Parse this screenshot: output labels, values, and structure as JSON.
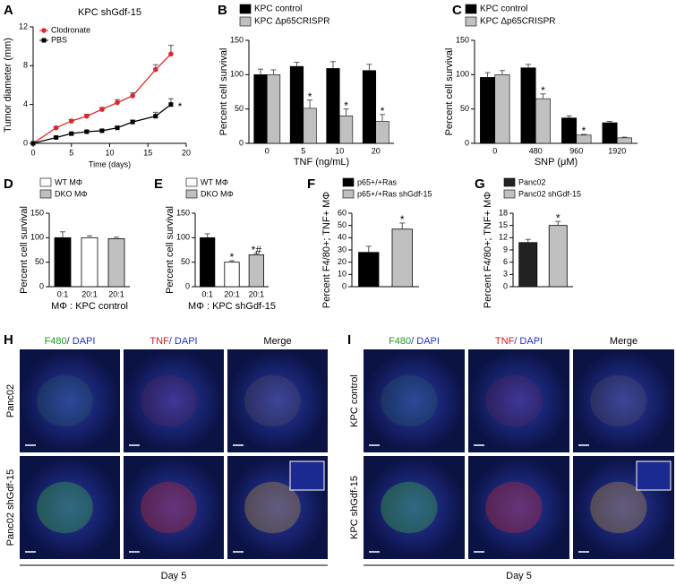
{
  "chart_data": [
    {
      "label": "A",
      "type": "line",
      "title": "KPC shGdf-15",
      "xlabel": "Time (days)",
      "ylabel": "Tumor diameter (mm)",
      "x": [
        0,
        3,
        5,
        7,
        9,
        11,
        13,
        16,
        18
      ],
      "series": [
        {
          "name": "Clodronate",
          "color": "#e0262b",
          "values": [
            0,
            1.6,
            2.3,
            2.8,
            3.5,
            4.2,
            4.9,
            7.6,
            9.2
          ],
          "errors": [
            0,
            0.1,
            0.15,
            0.2,
            0.2,
            0.3,
            0.3,
            0.5,
            0.9
          ]
        },
        {
          "name": "PBS",
          "color": "#000000",
          "values": [
            0,
            0.6,
            1.0,
            1.2,
            1.3,
            1.6,
            2.2,
            2.8,
            4.0
          ],
          "errors": [
            0,
            0.1,
            0.1,
            0.1,
            0.1,
            0.15,
            0.2,
            0.4,
            0.6
          ]
        }
      ],
      "xlim": [
        0,
        20
      ],
      "xticks": [
        0,
        5,
        10,
        15,
        20
      ],
      "ylim": [
        0,
        12
      ],
      "yticks": [
        0,
        4,
        8,
        12
      ],
      "annotations": [
        "*"
      ]
    },
    {
      "label": "B",
      "type": "bar",
      "xlabel": "TNF (ng/mL)",
      "ylabel": "Percent cell survival",
      "categories": [
        "0",
        "5",
        "10",
        "20"
      ],
      "series": [
        {
          "name": "KPC control",
          "color": "#000000",
          "values": [
            100,
            112,
            109,
            106
          ],
          "errors": [
            8,
            6,
            10,
            9
          ]
        },
        {
          "name": "KPC Δp65CRISPR",
          "color": "#c0c0c0",
          "values": [
            100,
            51,
            40,
            32
          ],
          "errors": [
            7,
            12,
            10,
            10
          ]
        }
      ],
      "ylim": [
        0,
        150
      ],
      "yticks": [
        0,
        50,
        100,
        150
      ],
      "annotations": [
        "*",
        "*",
        "*"
      ]
    },
    {
      "label": "C",
      "type": "bar",
      "xlabel": "SNP (μM)",
      "ylabel": "Percent cell survival",
      "categories": [
        "0",
        "480",
        "960",
        "1920"
      ],
      "series": [
        {
          "name": "KPC control",
          "color": "#000000",
          "values": [
            96,
            110,
            37,
            30
          ],
          "errors": [
            7,
            5,
            3,
            2
          ]
        },
        {
          "name": "KPC Δp65CRISPR",
          "color": "#c0c0c0",
          "values": [
            100,
            65,
            12,
            8
          ],
          "errors": [
            6,
            7,
            1,
            1
          ]
        }
      ],
      "ylim": [
        0,
        150
      ],
      "yticks": [
        0,
        50,
        100,
        150
      ],
      "annotations": [
        "*",
        "*"
      ]
    },
    {
      "label": "D",
      "type": "bar",
      "xlabel": "MΦ : KPC control",
      "ylabel": "Percent cell survival",
      "categories": [
        "0:1",
        "20:1",
        "20:1"
      ],
      "values": [
        100,
        100,
        98
      ],
      "errors": [
        12,
        4,
        3
      ],
      "colors": [
        "#000000",
        "#ffffff",
        "#c0c0c0"
      ],
      "legend": [
        {
          "name": "WT MΦ",
          "color": "#ffffff"
        },
        {
          "name": "DKO MΦ",
          "color": "#c0c0c0"
        }
      ],
      "ylim": [
        0,
        150
      ],
      "yticks": [
        0,
        50,
        100,
        150
      ]
    },
    {
      "label": "E",
      "type": "bar",
      "xlabel": "MΦ : KPC shGdf-15",
      "ylabel": "Percent cell survival",
      "categories": [
        "0:1",
        "20:1",
        "20:1"
      ],
      "values": [
        100,
        50,
        65
      ],
      "errors": [
        8,
        3,
        3
      ],
      "colors": [
        "#000000",
        "#ffffff",
        "#c0c0c0"
      ],
      "legend": [
        {
          "name": "WT MΦ",
          "color": "#ffffff"
        },
        {
          "name": "DKO MΦ",
          "color": "#c0c0c0"
        }
      ],
      "ylim": [
        0,
        150
      ],
      "yticks": [
        0,
        50,
        100,
        150
      ],
      "annotations": [
        "*",
        "*#"
      ]
    },
    {
      "label": "F",
      "type": "bar",
      "ylabel": "Percent F4/80+; TNF+ MΦ",
      "categories": [
        null,
        null
      ],
      "values": [
        28,
        47
      ],
      "errors": [
        5,
        5
      ],
      "colors": [
        "#000000",
        "#c0c0c0"
      ],
      "legend": [
        {
          "name": "p65+/+Ras",
          "color": "#000000"
        },
        {
          "name": "p65+/+Ras shGdf-15",
          "color": "#c0c0c0"
        }
      ],
      "ylim": [
        0,
        60
      ],
      "yticks": [
        0,
        10,
        20,
        30,
        40,
        50,
        60
      ],
      "annotations": [
        "*"
      ]
    },
    {
      "label": "G",
      "type": "bar",
      "ylabel": "Percent F4/80+; TNF+ MΦ",
      "categories": [
        null,
        null
      ],
      "values": [
        10.8,
        15
      ],
      "errors": [
        0.8,
        1.0
      ],
      "colors": [
        "#222222",
        "#c0c0c0"
      ],
      "legend": [
        {
          "name": "Panc02",
          "color": "#222222"
        },
        {
          "name": "Panc02 shGdf-15",
          "color": "#c0c0c0"
        }
      ],
      "ylim": [
        0,
        18
      ],
      "yticks": [
        0,
        3,
        6,
        9,
        12,
        15,
        18
      ],
      "annotations": [
        "*"
      ]
    }
  ],
  "images": [
    {
      "label": "H",
      "columns": [
        [
          "F480",
          "/ DAPI"
        ],
        [
          "TNF",
          "/ DAPI"
        ],
        [
          "Merge"
        ]
      ],
      "rows": [
        "Panc02",
        "Panc02 shGdf-15"
      ],
      "footer": "Day 5"
    },
    {
      "label": "I",
      "columns": [
        [
          "F480",
          "/ DAPI"
        ],
        [
          "TNF",
          "/ DAPI"
        ],
        [
          "Merge"
        ]
      ],
      "rows": [
        "KPC control",
        "KPC shGdf-15"
      ],
      "footer": "Day 5"
    }
  ]
}
